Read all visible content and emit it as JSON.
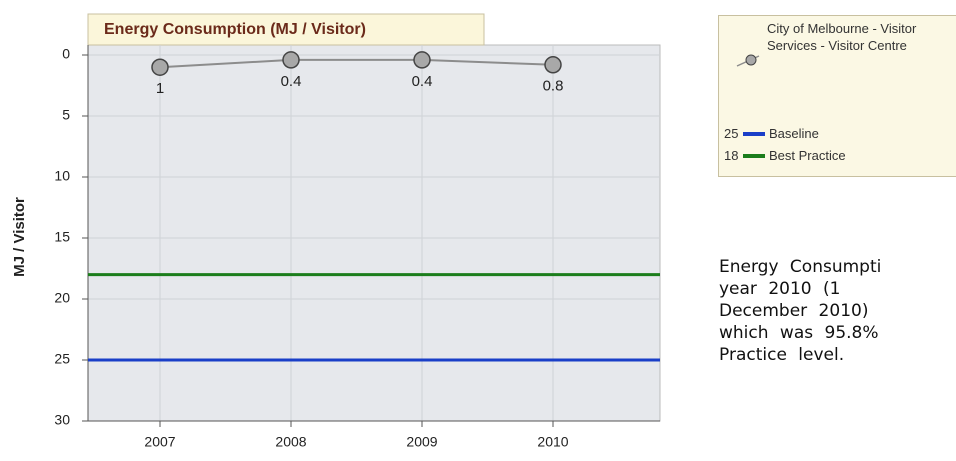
{
  "chart_data": {
    "type": "line",
    "title": "Energy Consumption (MJ / Visitor)",
    "y_label": "MJ / Visitor",
    "categories": [
      "2007",
      "2008",
      "2009",
      "2010"
    ],
    "series": [
      {
        "name": "City of Melbourne - Visitor Services - Visitor Centre",
        "color": "#8c8c8c",
        "values": [
          1,
          0.4,
          0.4,
          0.8
        ]
      }
    ],
    "reference_lines": [
      {
        "name": "Baseline",
        "value": 25,
        "color": "#1a3fc8"
      },
      {
        "name": "Best Practice",
        "value": 18,
        "color": "#1b7d1b"
      }
    ],
    "ylim": [
      0,
      30
    ],
    "yticks": [
      0,
      5,
      10,
      15,
      20,
      25,
      30
    ],
    "y_inverted": true,
    "grid": true
  },
  "text": [
    "Energy Consumpti",
    "year 2010 (1",
    "December 2010)",
    "which was 95.8%",
    "Practice level."
  ]
}
